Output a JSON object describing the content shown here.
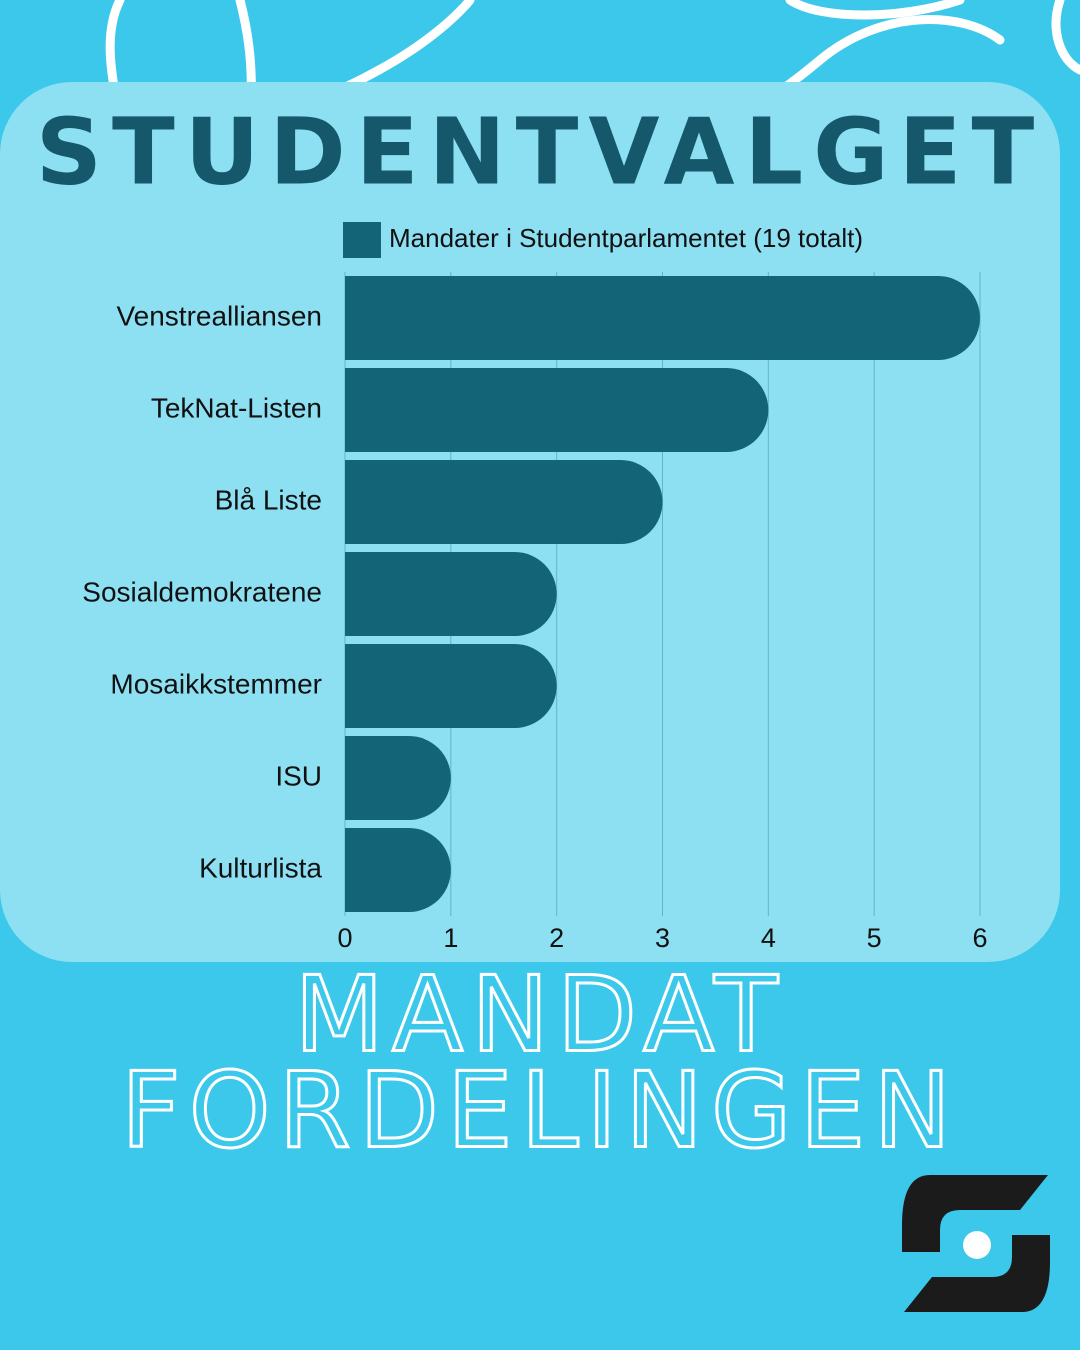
{
  "chart_data": {
    "type": "bar",
    "orientation": "horizontal",
    "title": "STUDENTVALGET",
    "categories": [
      "Venstrealliansen",
      "TekNat-Listen",
      "Blå Liste",
      "Sosialdemokratene",
      "Mosaikkstemmer",
      "ISU",
      "Kulturlista"
    ],
    "series": [
      {
        "name": "Mandater i Studentparlamentet (19 totalt)",
        "color": "#146477",
        "values": [
          6,
          4,
          3,
          2,
          2,
          1,
          1
        ]
      }
    ],
    "xlim": [
      0,
      6
    ],
    "xticks": [
      0,
      1,
      2,
      3,
      4,
      5,
      6
    ],
    "grid": true,
    "footer": [
      "MANDAT",
      "FORDELINGEN"
    ]
  }
}
